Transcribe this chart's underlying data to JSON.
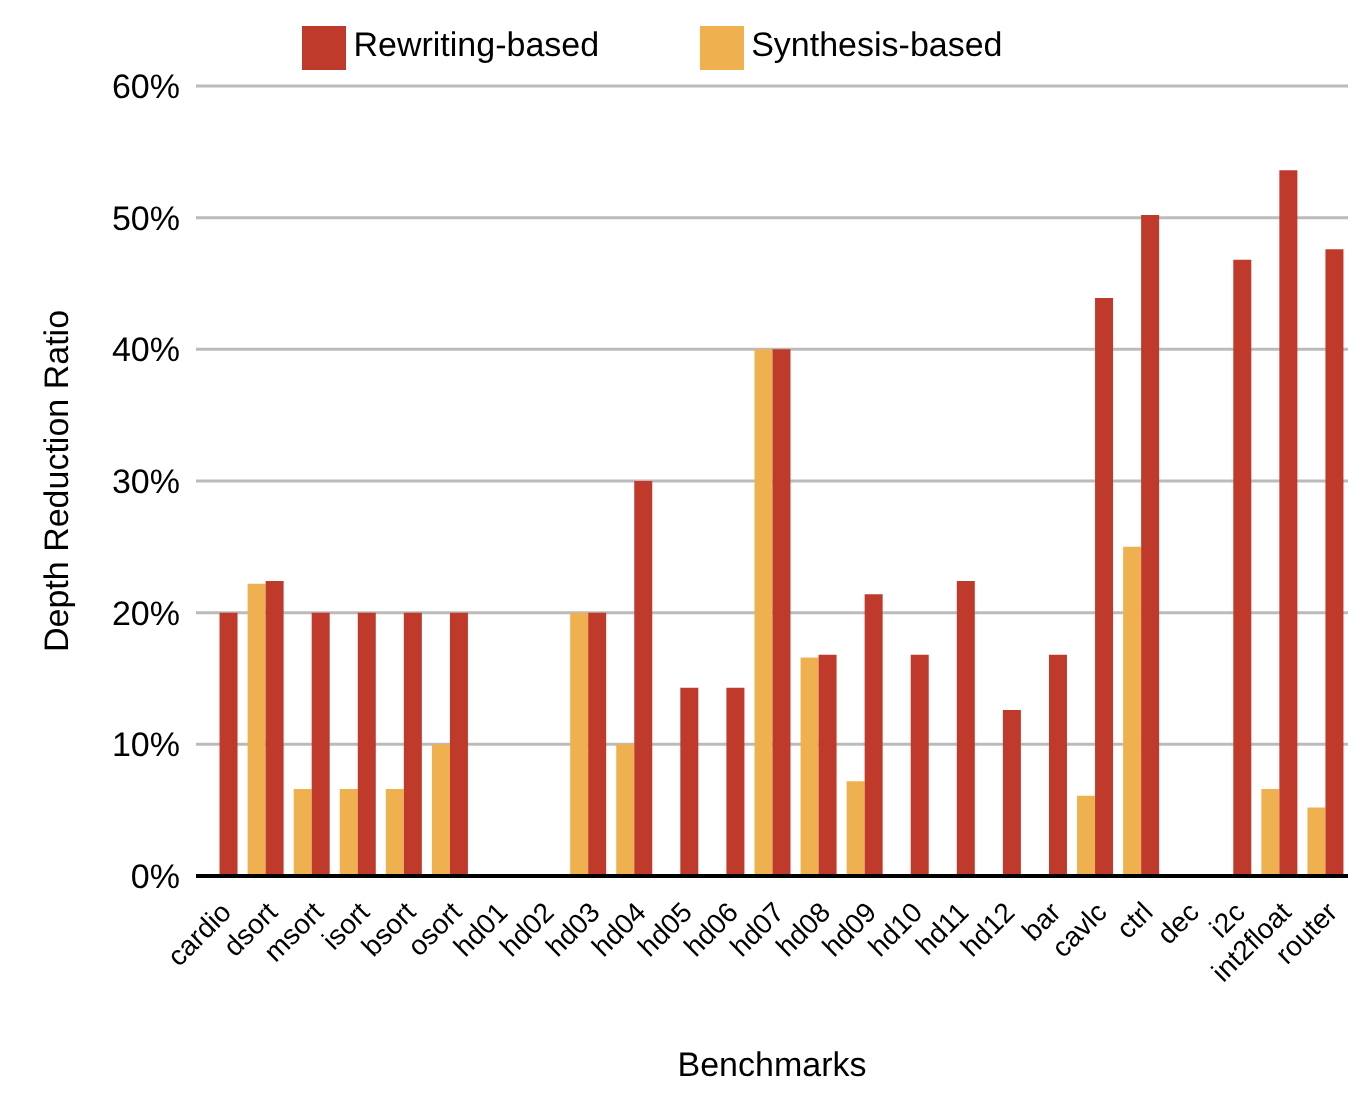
{
  "chart_data": {
    "type": "bar",
    "xlabel": "Benchmarks",
    "ylabel": "Depth Reduction Ratio",
    "categories": [
      "cardio",
      "dsort",
      "msort",
      "isort",
      "bsort",
      "osort",
      "hd01",
      "hd02",
      "hd03",
      "hd04",
      "hd05",
      "hd06",
      "hd07",
      "hd08",
      "hd09",
      "hd10",
      "hd11",
      "hd12",
      "bar",
      "cavlc",
      "ctrl",
      "dec",
      "i2c",
      "int2float",
      "router"
    ],
    "series": [
      {
        "name": "Synthesis-based",
        "color": "#efb14f",
        "values": [
          0,
          22.2,
          6.6,
          6.6,
          6.6,
          10,
          0,
          0,
          20,
          10,
          0,
          0,
          40,
          16.6,
          7.2,
          0,
          0,
          0,
          0,
          6.1,
          25,
          0,
          0,
          6.6,
          5.2
        ]
      },
      {
        "name": "Rewriting-based",
        "color": "#bf3a2b",
        "values": [
          20,
          22.4,
          20,
          20,
          20,
          20,
          0,
          0,
          20,
          30,
          14.3,
          14.3,
          40,
          16.8,
          21.4,
          16.8,
          22.4,
          12.6,
          16.8,
          43.9,
          50.2,
          0,
          46.8,
          53.6,
          47.6
        ]
      }
    ],
    "ylim": [
      0,
      60
    ],
    "yticks": [
      {
        "value": 0,
        "label": "0%"
      },
      {
        "value": 10,
        "label": "10%"
      },
      {
        "value": 20,
        "label": "20%"
      },
      {
        "value": 30,
        "label": "30%"
      },
      {
        "value": 40,
        "label": "40%"
      },
      {
        "value": 50,
        "label": "50%"
      },
      {
        "value": 60,
        "label": "60%"
      }
    ],
    "grid": "y",
    "legend": "top"
  }
}
